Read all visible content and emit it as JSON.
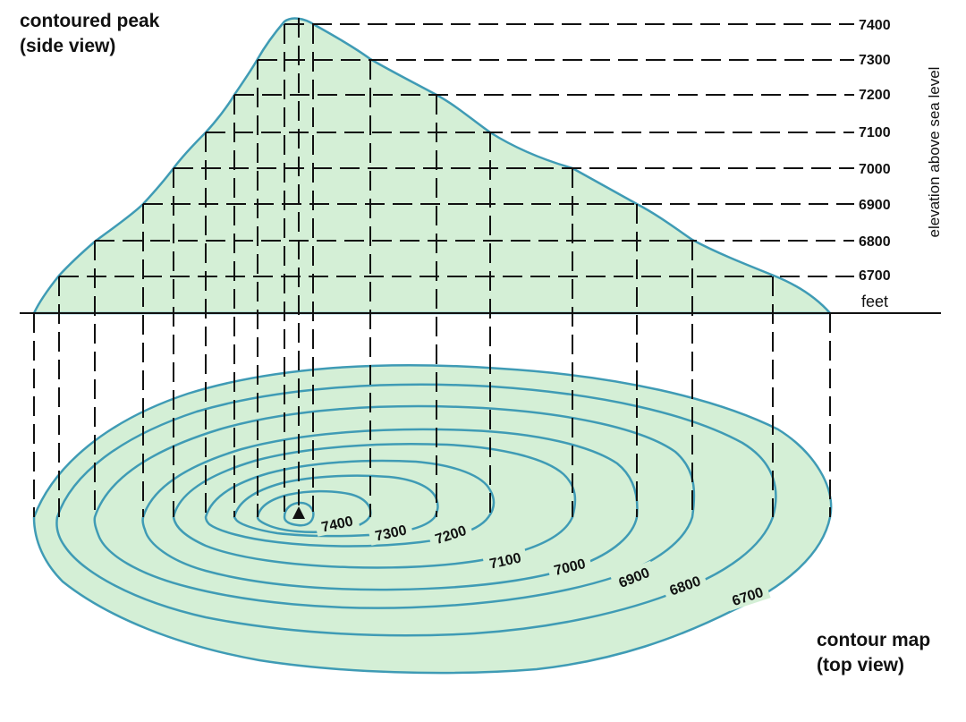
{
  "side_view": {
    "title_line1": "contoured peak",
    "title_line2": "(side view)",
    "unit": "feet",
    "axis_label": "elevation above sea level",
    "elevation_labels": [
      "7400",
      "7300",
      "7200",
      "7100",
      "7000",
      "6900",
      "6800",
      "6700"
    ]
  },
  "top_view": {
    "title_line1": "contour map",
    "title_line2": "(top view)",
    "contour_labels": [
      "7400",
      "7300",
      "7200",
      "7100",
      "7000",
      "6900",
      "6800",
      "6700"
    ]
  },
  "colors": {
    "fill": "#d4efd6",
    "outline": "#3f9bb5",
    "lines": "#111111"
  }
}
